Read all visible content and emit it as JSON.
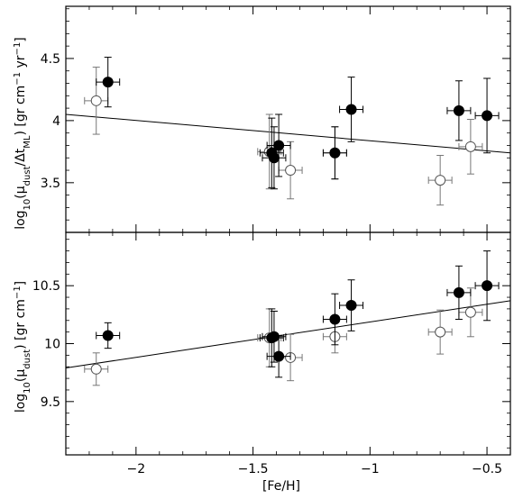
{
  "chart_data": [
    {
      "type": "scatter",
      "panel": "top",
      "xlabel": "",
      "ylabel": "log10(μdust/ΔtML) [gr cm⁻¹ yr⁻¹]",
      "ylabel_parts": {
        "log": "log",
        "log_sub": "10",
        "open": "(μ",
        "mu_sub": "dust",
        "slash": "/Δt",
        "t_sub": "ML",
        "rest": ") [gr cm",
        "exp1": "−1",
        "mid": " yr",
        "exp2": "−1",
        "close": "]"
      },
      "xlim": [
        -2.3,
        -0.4
      ],
      "ylim": [
        3.1,
        4.92
      ],
      "yticks": [
        3.5,
        4,
        4.5
      ],
      "ytick_labels": [
        "3.5",
        "4",
        "4.5"
      ],
      "series": [
        {
          "marker": "filled",
          "points": [
            {
              "x": -2.12,
              "y": 4.31,
              "xerr": 0.05,
              "yerr": 0.2
            },
            {
              "x": -1.42,
              "y": 3.74,
              "xerr": 0.05,
              "yerr": 0.28
            },
            {
              "x": -1.41,
              "y": 3.7,
              "xerr": 0.05,
              "yerr": 0.25
            },
            {
              "x": -1.39,
              "y": 3.8,
              "xerr": 0.05,
              "yerr": 0.25
            },
            {
              "x": -1.15,
              "y": 3.74,
              "xerr": 0.05,
              "yerr": 0.21
            },
            {
              "x": -1.08,
              "y": 4.09,
              "xerr": 0.05,
              "yerr": 0.26
            },
            {
              "x": -0.62,
              "y": 4.08,
              "xerr": 0.05,
              "yerr": 0.24
            },
            {
              "x": -0.5,
              "y": 4.04,
              "xerr": 0.05,
              "yerr": 0.3
            }
          ]
        },
        {
          "marker": "open",
          "points": [
            {
              "x": -2.17,
              "y": 4.16,
              "xerr": 0.05,
              "yerr": 0.27
            },
            {
              "x": -1.43,
              "y": 3.75,
              "xerr": 0.05,
              "yerr": 0.3
            },
            {
              "x": -1.34,
              "y": 3.6,
              "xerr": 0.05,
              "yerr": 0.23
            },
            {
              "x": -1.15,
              "y": 3.74,
              "xerr": 0.05,
              "yerr": 0.21
            },
            {
              "x": -0.7,
              "y": 3.52,
              "xerr": 0.05,
              "yerr": 0.2
            },
            {
              "x": -0.57,
              "y": 3.79,
              "xerr": 0.05,
              "yerr": 0.22
            }
          ]
        }
      ],
      "fit_line": {
        "x": [
          -2.3,
          -0.4
        ],
        "y": [
          4.05,
          3.74
        ]
      }
    },
    {
      "type": "scatter",
      "panel": "bottom",
      "xlabel": "[Fe/H]",
      "ylabel": "log10(μdust) [gr cm⁻¹]",
      "ylabel_parts": {
        "log": "log",
        "log_sub": "10",
        "open": "(μ",
        "mu_sub": "dust",
        "rest": ") [gr cm",
        "exp1": "−1",
        "close": "]"
      },
      "xlim": [
        -2.3,
        -0.4
      ],
      "ylim": [
        9.04,
        10.96
      ],
      "xticks": [
        -2,
        -1.5,
        -1,
        -0.5
      ],
      "xtick_labels": [
        "−2",
        "−1.5",
        "−1",
        "−0.5"
      ],
      "yticks": [
        9.5,
        10,
        10.5
      ],
      "ytick_labels": [
        "9.5",
        "10",
        "10.5"
      ],
      "series": [
        {
          "marker": "filled",
          "points": [
            {
              "x": -2.12,
              "y": 10.07,
              "xerr": 0.05,
              "yerr": 0.11
            },
            {
              "x": -1.42,
              "y": 10.05,
              "xerr": 0.05,
              "yerr": 0.25
            },
            {
              "x": -1.41,
              "y": 10.06,
              "xerr": 0.05,
              "yerr": 0.22
            },
            {
              "x": -1.39,
              "y": 9.89,
              "xerr": 0.05,
              "yerr": 0.18
            },
            {
              "x": -1.15,
              "y": 10.21,
              "xerr": 0.05,
              "yerr": 0.22
            },
            {
              "x": -1.08,
              "y": 10.33,
              "xerr": 0.05,
              "yerr": 0.22
            },
            {
              "x": -0.62,
              "y": 10.44,
              "xerr": 0.05,
              "yerr": 0.23
            },
            {
              "x": -0.5,
              "y": 10.5,
              "xerr": 0.05,
              "yerr": 0.3
            }
          ]
        },
        {
          "marker": "open",
          "points": [
            {
              "x": -2.17,
              "y": 9.78,
              "xerr": 0.05,
              "yerr": 0.14
            },
            {
              "x": -1.43,
              "y": 10.05,
              "xerr": 0.05,
              "yerr": 0.25
            },
            {
              "x": -1.34,
              "y": 9.88,
              "xerr": 0.05,
              "yerr": 0.2
            },
            {
              "x": -1.15,
              "y": 10.06,
              "xerr": 0.05,
              "yerr": 0.14
            },
            {
              "x": -0.7,
              "y": 10.1,
              "xerr": 0.05,
              "yerr": 0.19
            },
            {
              "x": -0.57,
              "y": 10.27,
              "xerr": 0.05,
              "yerr": 0.21
            }
          ]
        }
      ],
      "fit_line": {
        "x": [
          -2.3,
          -0.4
        ],
        "y": [
          9.79,
          10.37
        ]
      }
    }
  ]
}
